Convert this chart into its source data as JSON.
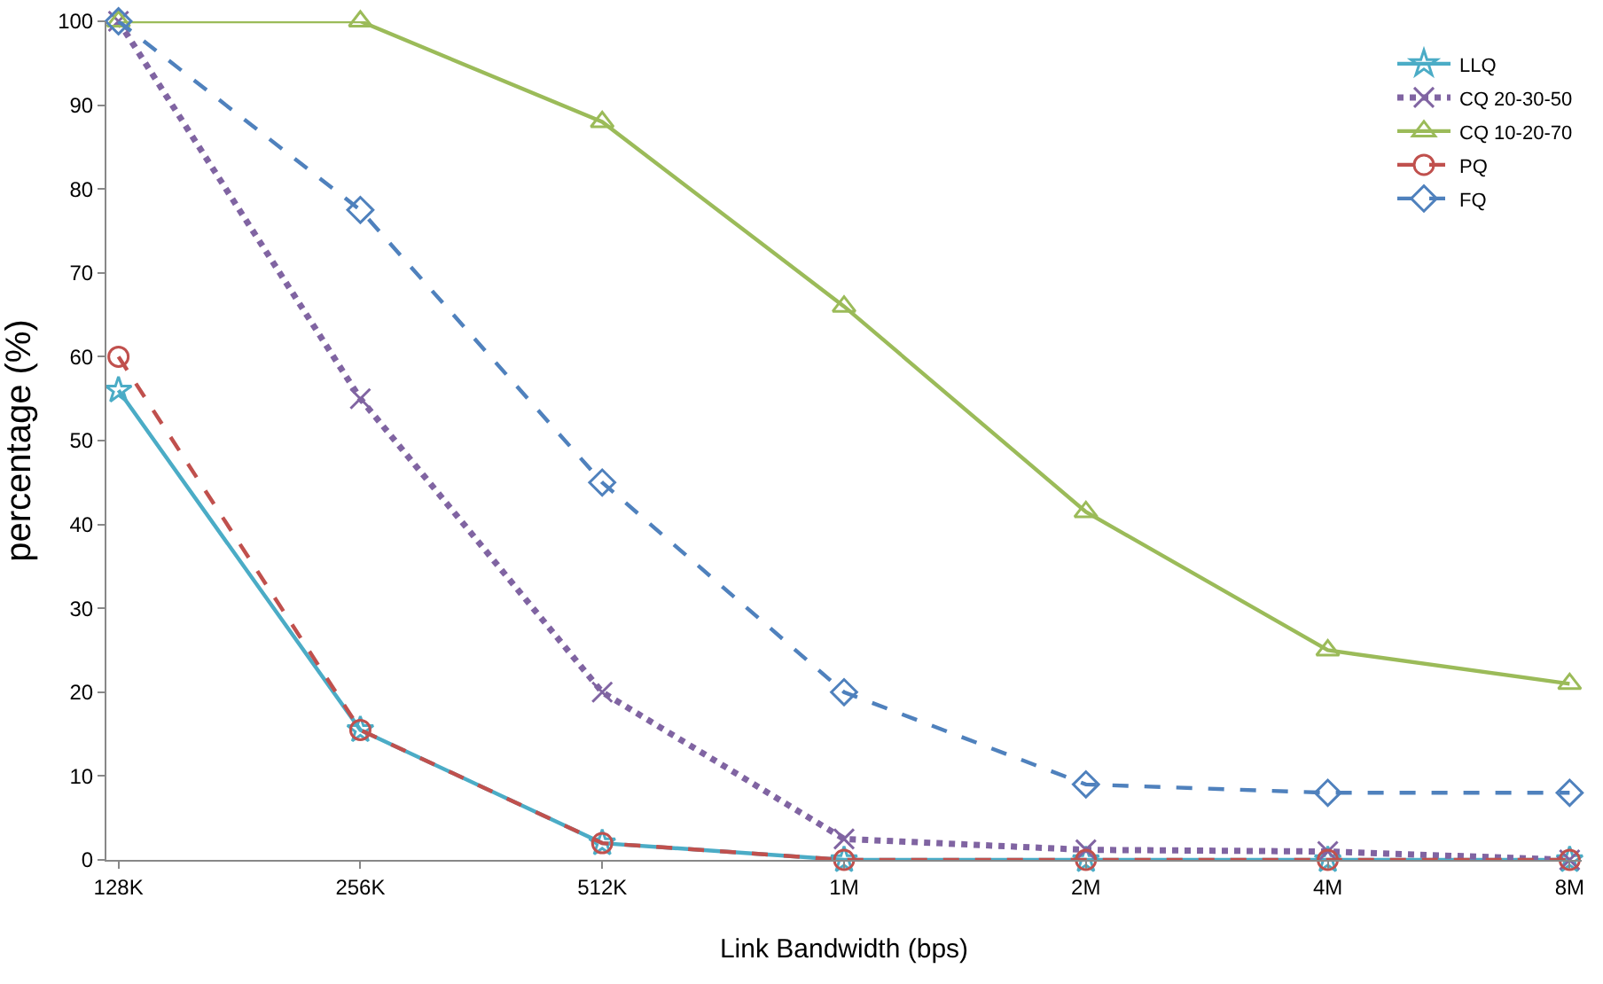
{
  "chart_data": {
    "type": "line",
    "xlabel": "Link Bandwidth (bps)",
    "ylabel": "percentage (%)",
    "categories": [
      "128K",
      "256K",
      "512K",
      "1M",
      "2M",
      "4M",
      "8M"
    ],
    "ylim": [
      0,
      100
    ],
    "yticks": [
      0,
      10,
      20,
      30,
      40,
      50,
      60,
      70,
      80,
      90,
      100
    ],
    "grid": false,
    "legend": "top right",
    "series": [
      {
        "name": "LLQ",
        "color": "#4bacc6",
        "marker": "star",
        "line_style": "solid",
        "values": [
          56,
          15.5,
          2,
          0,
          0,
          0,
          0
        ]
      },
      {
        "name": "CQ 20-30-50",
        "color": "#8064a2",
        "marker": "cross",
        "line_style": "dotted",
        "values": [
          100,
          55,
          20,
          2.5,
          1.2,
          1,
          0
        ]
      },
      {
        "name": "CQ 10-20-70",
        "color": "#9bbb59",
        "marker": "triangle",
        "line_style": "solid",
        "values": [
          100,
          100,
          88,
          66,
          41.5,
          25,
          21
        ]
      },
      {
        "name": "PQ",
        "color": "#c0504d",
        "marker": "circle",
        "line_style": "dashed",
        "values": [
          60,
          15.5,
          2,
          0,
          0,
          0,
          0
        ]
      },
      {
        "name": "FQ",
        "color": "#4f81bd",
        "marker": "diamond",
        "line_style": "dashed",
        "values": [
          100,
          77.5,
          45,
          20,
          9,
          8,
          8
        ]
      }
    ]
  }
}
